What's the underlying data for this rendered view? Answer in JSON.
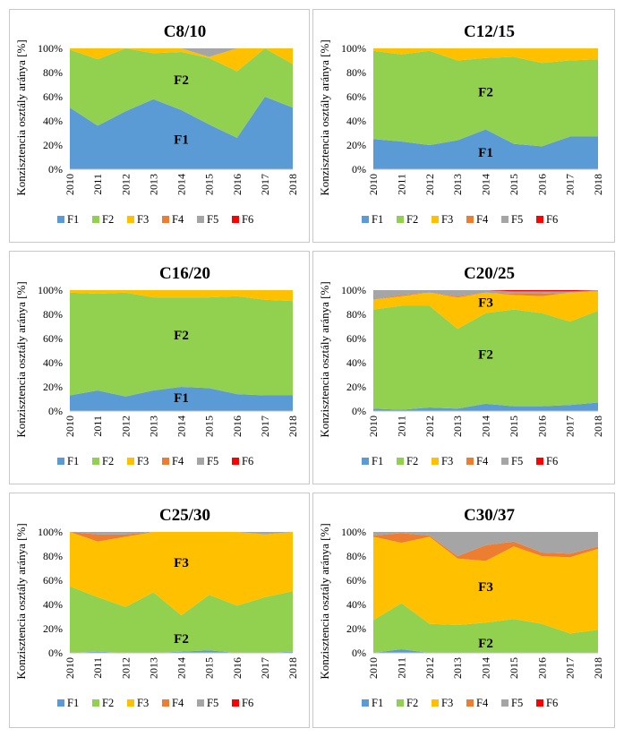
{
  "axis": {
    "ylabel": "Konzisztencia osztály aránya [%]",
    "yticks": [
      "0%",
      "20%",
      "40%",
      "60%",
      "80%",
      "100%"
    ],
    "years": [
      "2010",
      "2011",
      "2012",
      "2013",
      "2014",
      "2015",
      "2016",
      "2017",
      "2018"
    ]
  },
  "legend": [
    "F1",
    "F2",
    "F3",
    "F4",
    "F5",
    "F6"
  ],
  "colors": {
    "F1": "#5b9bd5",
    "F2": "#92d050",
    "F3": "#ffc000",
    "F4": "#ed7d31",
    "F5": "#a5a5a5",
    "F6": "#ff0000"
  },
  "chart_data": [
    {
      "type": "area",
      "stacked": true,
      "title": "C8/10",
      "x": [
        "2010",
        "2011",
        "2012",
        "2013",
        "2014",
        "2015",
        "2016",
        "2017",
        "2018"
      ],
      "ylim": [
        0,
        100
      ],
      "annotations": [
        "F2",
        "F1"
      ],
      "series": [
        {
          "name": "F1",
          "values": [
            51,
            36,
            48,
            58,
            49,
            37,
            26,
            60,
            51
          ]
        },
        {
          "name": "F2",
          "values": [
            48,
            55,
            52,
            38,
            48,
            55,
            55,
            40,
            36
          ]
        },
        {
          "name": "F3",
          "values": [
            1,
            9,
            0,
            4,
            3,
            1,
            19,
            0,
            13
          ]
        },
        {
          "name": "F4",
          "values": [
            0,
            0,
            0,
            0,
            0,
            0,
            0,
            0,
            0
          ]
        },
        {
          "name": "F5",
          "values": [
            0,
            0,
            0,
            0,
            0,
            7,
            0,
            0,
            0
          ]
        },
        {
          "name": "F6",
          "values": [
            0,
            0,
            0,
            0,
            0,
            0,
            0,
            0,
            0
          ]
        }
      ]
    },
    {
      "type": "area",
      "stacked": true,
      "title": "C12/15",
      "x": [
        "2010",
        "2011",
        "2012",
        "2013",
        "2014",
        "2015",
        "2016",
        "2017",
        "2018"
      ],
      "ylim": [
        0,
        100
      ],
      "annotations": [
        "F2",
        "F1"
      ],
      "series": [
        {
          "name": "F1",
          "values": [
            25,
            23,
            20,
            24,
            33,
            21,
            19,
            27,
            27
          ]
        },
        {
          "name": "F2",
          "values": [
            73,
            72,
            78,
            66,
            59,
            72,
            69,
            63,
            64
          ]
        },
        {
          "name": "F3",
          "values": [
            2,
            5,
            2,
            10,
            8,
            7,
            12,
            10,
            9
          ]
        },
        {
          "name": "F4",
          "values": [
            0,
            0,
            0,
            0,
            0,
            0,
            0,
            0,
            0
          ]
        },
        {
          "name": "F5",
          "values": [
            0,
            0,
            0,
            0,
            0,
            0,
            0,
            0,
            0
          ]
        },
        {
          "name": "F6",
          "values": [
            0,
            0,
            0,
            0,
            0,
            0,
            0,
            0,
            0
          ]
        }
      ]
    },
    {
      "type": "area",
      "stacked": true,
      "title": "C16/20",
      "x": [
        "2010",
        "2011",
        "2012",
        "2013",
        "2014",
        "2015",
        "2016",
        "2017",
        "2018"
      ],
      "ylim": [
        0,
        100
      ],
      "annotations": [
        "F2",
        "F1"
      ],
      "series": [
        {
          "name": "F1",
          "values": [
            13,
            17,
            12,
            17,
            20,
            19,
            14,
            13,
            13
          ]
        },
        {
          "name": "F2",
          "values": [
            85,
            80,
            86,
            77,
            74,
            75,
            81,
            79,
            78
          ]
        },
        {
          "name": "F3",
          "values": [
            2,
            3,
            2,
            6,
            6,
            6,
            5,
            8,
            9
          ]
        },
        {
          "name": "F4",
          "values": [
            0,
            0,
            0,
            0,
            0,
            0,
            0,
            0,
            0
          ]
        },
        {
          "name": "F5",
          "values": [
            0,
            0,
            0,
            0,
            0,
            0,
            0,
            0,
            0
          ]
        },
        {
          "name": "F6",
          "values": [
            0,
            0,
            0,
            0,
            0,
            0,
            0,
            0,
            0
          ]
        }
      ]
    },
    {
      "type": "area",
      "stacked": true,
      "title": "C20/25",
      "x": [
        "2010",
        "2011",
        "2012",
        "2013",
        "2014",
        "2015",
        "2016",
        "2017",
        "2018"
      ],
      "ylim": [
        0,
        100
      ],
      "annotations": [
        "F3",
        "F2"
      ],
      "series": [
        {
          "name": "F1",
          "values": [
            2,
            1,
            3,
            2,
            6,
            4,
            4,
            5,
            7
          ]
        },
        {
          "name": "F2",
          "values": [
            82,
            86,
            84,
            66,
            75,
            80,
            77,
            69,
            76
          ]
        },
        {
          "name": "F3",
          "values": [
            8,
            8,
            11,
            26,
            17,
            12,
            14,
            24,
            16
          ]
        },
        {
          "name": "F4",
          "values": [
            0,
            1,
            0,
            1,
            0,
            1,
            2,
            0,
            0
          ]
        },
        {
          "name": "F5",
          "values": [
            8,
            4,
            2,
            5,
            2,
            2,
            2,
            1,
            1
          ]
        },
        {
          "name": "F6",
          "values": [
            0,
            0,
            0,
            0,
            0,
            1,
            1,
            1,
            0
          ]
        }
      ]
    },
    {
      "type": "area",
      "stacked": true,
      "title": "C25/30",
      "x": [
        "2010",
        "2011",
        "2012",
        "2013",
        "2014",
        "2015",
        "2016",
        "2017",
        "2018"
      ],
      "ylim": [
        0,
        100
      ],
      "annotations": [
        "F3",
        "F2"
      ],
      "series": [
        {
          "name": "F1",
          "values": [
            0,
            1,
            0,
            0,
            1,
            2,
            0,
            0,
            1
          ]
        },
        {
          "name": "F2",
          "values": [
            55,
            45,
            38,
            50,
            30,
            46,
            39,
            46,
            50
          ]
        },
        {
          "name": "F3",
          "values": [
            45,
            46,
            58,
            50,
            69,
            52,
            61,
            52,
            49
          ]
        },
        {
          "name": "F4",
          "values": [
            0,
            6,
            2,
            0,
            0,
            0,
            0,
            0,
            0
          ]
        },
        {
          "name": "F5",
          "values": [
            0,
            2,
            2,
            0,
            0,
            0,
            0,
            2,
            0
          ]
        },
        {
          "name": "F6",
          "values": [
            0,
            0,
            0,
            0,
            0,
            0,
            0,
            0,
            0
          ]
        }
      ]
    },
    {
      "type": "area",
      "stacked": true,
      "title": "C30/37",
      "x": [
        "2010",
        "2011",
        "2012",
        "2013",
        "2014",
        "2015",
        "2016",
        "2017",
        "2018"
      ],
      "ylim": [
        0,
        100
      ],
      "annotations": [
        "F3",
        "F2"
      ],
      "series": [
        {
          "name": "F1",
          "values": [
            0,
            3,
            0,
            0,
            0,
            0,
            0,
            0,
            0
          ]
        },
        {
          "name": "F2",
          "values": [
            27,
            38,
            24,
            23,
            25,
            28,
            24,
            16,
            19
          ]
        },
        {
          "name": "F3",
          "values": [
            69,
            50,
            72,
            55,
            51,
            60,
            56,
            63,
            67
          ]
        },
        {
          "name": "F4",
          "values": [
            1,
            8,
            1,
            2,
            13,
            4,
            3,
            3,
            2
          ]
        },
        {
          "name": "F5",
          "values": [
            3,
            1,
            3,
            20,
            11,
            8,
            17,
            18,
            12
          ]
        },
        {
          "name": "F6",
          "values": [
            0,
            0,
            0,
            0,
            0,
            0,
            0,
            0,
            0
          ]
        }
      ]
    }
  ]
}
